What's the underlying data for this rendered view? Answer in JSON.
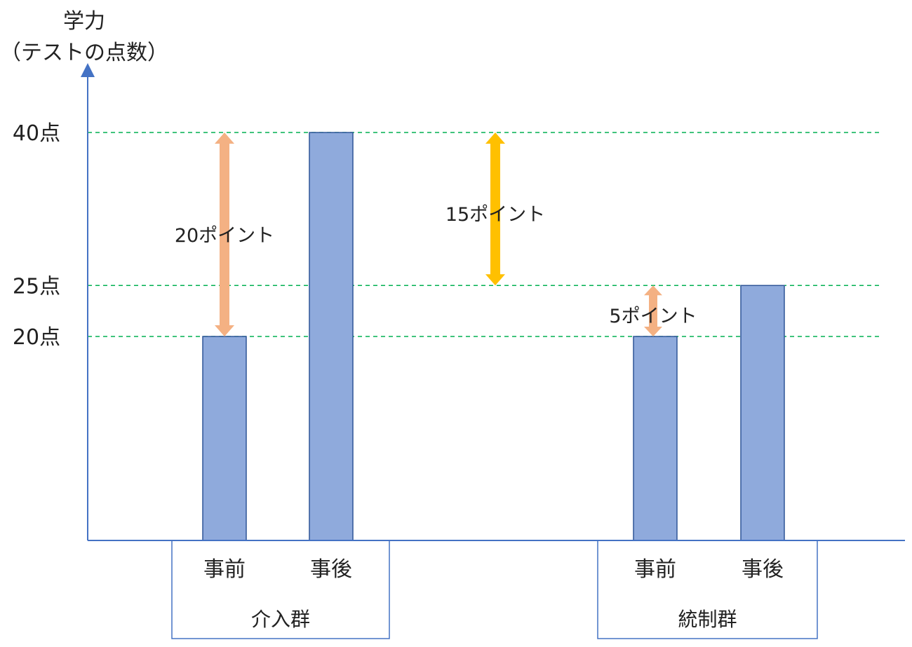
{
  "chart_data": {
    "type": "bar",
    "title": "",
    "ylabel_line1": "学力",
    "ylabel_line2": "（テストの点数）",
    "ylim": [
      0,
      40
    ],
    "yticks": [
      {
        "value": 40,
        "label": "40点"
      },
      {
        "value": 25,
        "label": "25点"
      },
      {
        "value": 20,
        "label": "20点"
      }
    ],
    "grid": "dashed at tick values",
    "groups": [
      {
        "name": "介入群",
        "bars": [
          {
            "label": "事前",
            "value": 20
          },
          {
            "label": "事後",
            "value": 40
          }
        ]
      },
      {
        "name": "統制群",
        "bars": [
          {
            "label": "事前",
            "value": 20
          },
          {
            "label": "事後",
            "value": 25
          }
        ]
      }
    ],
    "annotations": [
      {
        "label": "20ポイント",
        "from": 20,
        "to": 40,
        "color": "#f4b183"
      },
      {
        "label": "15ポイント",
        "from": 25,
        "to": 40,
        "color": "#ffc000"
      },
      {
        "label": "5ポイント",
        "from": 20,
        "to": 25,
        "color": "#f4b183"
      }
    ],
    "colors": {
      "bar": "#8faadc",
      "bar_edge": "#2f5597",
      "axis": "#4472c4",
      "grid": "#00b050"
    }
  }
}
